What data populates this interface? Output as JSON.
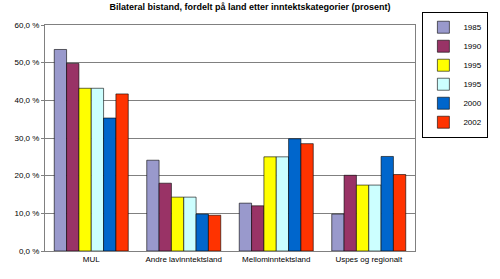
{
  "chart_data": {
    "type": "bar",
    "title": "Bilateral bistand, fordelt på land etter inntektskategorier (prosent)",
    "categories": [
      "MUL",
      "Andre lavinntektsland",
      "Mellominntektsland",
      "Uspes og regionalt"
    ],
    "series": [
      {
        "name": "1985",
        "color": "#9999cc",
        "values": [
          53.5,
          24.1,
          12.7,
          9.8
        ]
      },
      {
        "name": "1990",
        "color": "#993366",
        "values": [
          49.8,
          18.0,
          12.0,
          20.1
        ]
      },
      {
        "name": "1995",
        "color": "#ffff00",
        "values": [
          43.2,
          14.3,
          25.0,
          17.5
        ]
      },
      {
        "name": "1995",
        "color": "#ccffff",
        "values": [
          43.2,
          14.3,
          25.0,
          17.5
        ]
      },
      {
        "name": "2000",
        "color": "#0066cc",
        "values": [
          35.3,
          9.8,
          29.8,
          25.1
        ]
      },
      {
        "name": "2002",
        "color": "#ff3300",
        "values": [
          41.7,
          9.5,
          28.5,
          20.3
        ]
      }
    ],
    "ylim": [
      0,
      60
    ],
    "yticks": [
      {
        "value": 0,
        "label": "0,0 %"
      },
      {
        "value": 10,
        "label": "10,0 %"
      },
      {
        "value": 20,
        "label": "20,0 %"
      },
      {
        "value": 30,
        "label": "30,0 %"
      },
      {
        "value": 40,
        "label": "40,0 %"
      },
      {
        "value": 50,
        "label": "50,0 %"
      },
      {
        "value": 60,
        "label": "60,0 %"
      }
    ],
    "grid": true,
    "legend": "right"
  }
}
